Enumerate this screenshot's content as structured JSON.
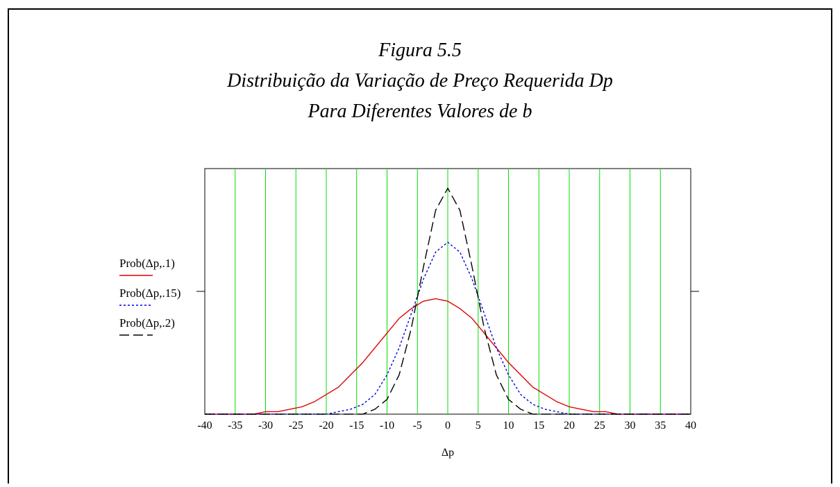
{
  "chart_data": {
    "type": "line",
    "title": [
      "Figura 5.5",
      "Distribuição da Variação de Preço Requerida Dp",
      "Para Diferentes Valores de b"
    ],
    "xlabel": "Δp",
    "x": [
      -40,
      -38,
      -36,
      -34,
      -32,
      -30,
      -28,
      -26,
      -24,
      -22,
      -20,
      -18,
      -16,
      -14,
      -12,
      -10,
      -8,
      -6,
      -4,
      -2,
      0,
      2,
      4,
      6,
      8,
      10,
      12,
      14,
      16,
      18,
      20,
      22,
      24,
      26,
      28,
      30,
      32,
      34,
      36,
      38,
      40
    ],
    "series": [
      {
        "name": "Prob(Δp,.1)",
        "color": "#e00000",
        "dash": "none",
        "values": [
          0,
          0,
          0,
          0,
          0,
          0.01,
          0.01,
          0.02,
          0.03,
          0.05,
          0.08,
          0.11,
          0.16,
          0.21,
          0.27,
          0.33,
          0.39,
          0.43,
          0.46,
          0.47,
          0.46,
          0.43,
          0.39,
          0.33,
          0.27,
          0.21,
          0.16,
          0.11,
          0.08,
          0.05,
          0.03,
          0.02,
          0.01,
          0.01,
          0,
          0,
          0,
          0,
          0,
          0,
          0
        ]
      },
      {
        "name": "Prob(Δp,.15)",
        "color": "#0000e0",
        "dash": "3,3",
        "values": [
          0,
          0,
          0,
          0,
          0,
          0,
          0,
          0,
          0,
          0,
          0,
          0.01,
          0.02,
          0.04,
          0.08,
          0.16,
          0.27,
          0.41,
          0.55,
          0.66,
          0.7,
          0.66,
          0.55,
          0.41,
          0.27,
          0.16,
          0.08,
          0.04,
          0.02,
          0.01,
          0,
          0,
          0,
          0,
          0,
          0,
          0,
          0,
          0,
          0,
          0
        ]
      },
      {
        "name": "Prob(Δp,.2)",
        "color": "#000000",
        "dash": "14,6",
        "values": [
          0,
          0,
          0,
          0,
          0,
          0,
          0,
          0,
          0,
          0,
          0,
          0,
          0,
          0,
          0.02,
          0.06,
          0.16,
          0.35,
          0.6,
          0.83,
          0.92,
          0.83,
          0.6,
          0.35,
          0.16,
          0.06,
          0.02,
          0,
          0,
          0,
          0,
          0,
          0,
          0,
          0,
          0,
          0,
          0,
          0,
          0,
          0
        ]
      }
    ],
    "xlim": [
      -40,
      40
    ],
    "xticks": [
      -40,
      -35,
      -30,
      -25,
      -20,
      -15,
      -10,
      -5,
      0,
      5,
      10,
      15,
      20,
      25,
      30,
      35,
      40
    ],
    "ylim": [
      0,
      1
    ],
    "grid": true,
    "grid_color": "#00dd00"
  }
}
